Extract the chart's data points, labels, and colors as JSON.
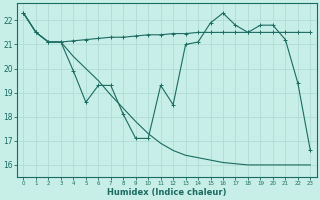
{
  "xlabel": "Humidex (Indice chaleur)",
  "bg_color": "#c8eee8",
  "grid_color": "#b0ddd6",
  "line_color": "#1a6b60",
  "xlim": [
    -0.5,
    23.5
  ],
  "ylim": [
    15.5,
    22.7
  ],
  "yticks": [
    16,
    17,
    18,
    19,
    20,
    21,
    22
  ],
  "xticks": [
    0,
    1,
    2,
    3,
    4,
    5,
    6,
    7,
    8,
    9,
    10,
    11,
    12,
    13,
    14,
    15,
    16,
    17,
    18,
    19,
    20,
    21,
    22,
    23
  ],
  "line1_x": [
    0,
    1,
    2,
    3,
    4,
    5,
    6,
    7,
    8,
    9,
    10,
    11,
    12,
    13,
    14,
    15,
    16,
    17,
    18,
    19,
    20,
    21,
    22,
    23
  ],
  "line1_y": [
    22.3,
    21.5,
    21.1,
    21.1,
    19.9,
    18.6,
    19.3,
    19.3,
    18.1,
    17.1,
    17.1,
    19.3,
    18.5,
    21.0,
    21.1,
    21.9,
    22.3,
    21.8,
    21.5,
    21.8,
    21.8,
    21.2,
    19.4,
    16.6
  ],
  "line2_x": [
    0,
    1,
    2,
    3,
    4,
    5,
    6,
    7,
    8,
    9,
    10,
    11,
    12,
    13,
    14,
    15,
    16,
    17,
    18,
    19,
    20,
    21,
    22,
    23
  ],
  "line2_y": [
    22.3,
    21.5,
    21.1,
    21.1,
    21.15,
    21.2,
    21.25,
    21.3,
    21.3,
    21.35,
    21.4,
    21.4,
    21.45,
    21.45,
    21.5,
    21.5,
    21.5,
    21.5,
    21.5,
    21.5,
    21.5,
    21.5,
    21.5,
    21.5
  ],
  "line3_x": [
    0,
    1,
    2,
    3,
    4,
    5,
    6,
    7,
    8,
    9,
    10,
    11,
    12,
    13,
    14,
    15,
    16,
    17,
    18,
    19,
    20,
    21,
    22,
    23
  ],
  "line3_y": [
    22.3,
    21.5,
    21.1,
    21.1,
    20.5,
    20.0,
    19.5,
    18.9,
    18.35,
    17.8,
    17.3,
    16.9,
    16.6,
    16.4,
    16.3,
    16.2,
    16.1,
    16.05,
    16.0,
    16.0,
    16.0,
    16.0,
    16.0,
    16.0
  ]
}
